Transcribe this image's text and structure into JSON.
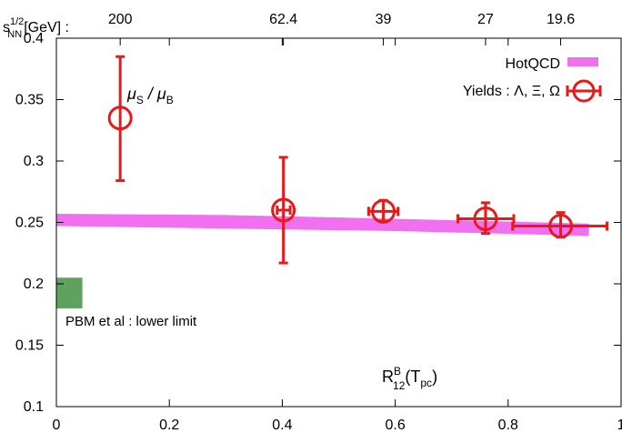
{
  "chart_data": {
    "type": "scatter",
    "xlim": [
      0,
      1
    ],
    "ylim": [
      0.1,
      0.4
    ],
    "x_ticks": [
      {
        "value": 0,
        "label": "0"
      },
      {
        "value": 0.2,
        "label": "0.2"
      },
      {
        "value": 0.4,
        "label": "0.4"
      },
      {
        "value": 0.6,
        "label": "0.6"
      },
      {
        "value": 0.8,
        "label": "0.8"
      },
      {
        "value": 1,
        "label": "1"
      }
    ],
    "y_ticks": [
      {
        "value": 0.1,
        "label": "0.1"
      },
      {
        "value": 0.15,
        "label": "0.15"
      },
      {
        "value": 0.2,
        "label": "0.2"
      },
      {
        "value": 0.25,
        "label": "0.25"
      },
      {
        "value": 0.3,
        "label": "0.3"
      },
      {
        "value": 0.35,
        "label": "0.35"
      },
      {
        "value": 0.4,
        "label": "0.4"
      }
    ],
    "top_axis": {
      "label_base": "s",
      "label_sup": "1/2",
      "label_sub": "NN",
      "label_rest": "[GeV] :",
      "ticks": [
        {
          "value": 0.113,
          "label": "200"
        },
        {
          "value": 0.402,
          "label": "62.4"
        },
        {
          "value": 0.579,
          "label": "39"
        },
        {
          "value": 0.76,
          "label": "27"
        },
        {
          "value": 0.893,
          "label": "19.6"
        }
      ]
    },
    "xlabel": {
      "main": "R",
      "sup": "B",
      "sub": "12",
      "rest": "(T",
      "rest_sub": "pc",
      "close": ")"
    },
    "series": [
      {
        "name": "Yields : Λ, Ξ, Ω",
        "color": "#e8191b",
        "points": [
          {
            "x": 0.113,
            "y": 0.335,
            "yerr_low": 0.284,
            "yerr_high": 0.385,
            "xerr_low": 0.113,
            "xerr_high": 0.113
          },
          {
            "x": 0.402,
            "y": 0.26,
            "yerr_low": 0.217,
            "yerr_high": 0.303,
            "xerr_low": 0.391,
            "xerr_high": 0.414
          },
          {
            "x": 0.579,
            "y": 0.259,
            "yerr_low": 0.251,
            "yerr_high": 0.268,
            "xerr_low": 0.553,
            "xerr_high": 0.605
          },
          {
            "x": 0.76,
            "y": 0.253,
            "yerr_low": 0.241,
            "yerr_high": 0.266,
            "xerr_low": 0.711,
            "xerr_high": 0.81
          },
          {
            "x": 0.893,
            "y": 0.247,
            "yerr_low": 0.238,
            "yerr_high": 0.258,
            "xerr_low": 0.808,
            "xerr_high": 0.975
          }
        ]
      },
      {
        "name": "HotQCD",
        "color": "#f070f0",
        "band": [
          {
            "x": 0.0,
            "y_low": 0.247,
            "y_high": 0.257
          },
          {
            "x": 0.3,
            "y_low": 0.245,
            "y_high": 0.256
          },
          {
            "x": 0.6,
            "y_low": 0.243,
            "y_high": 0.253
          },
          {
            "x": 0.943,
            "y_low": 0.239,
            "y_high": 0.249
          }
        ]
      }
    ],
    "pbm_box": {
      "x0": 0.0,
      "x1": 0.046,
      "y0": 0.18,
      "y1": 0.205,
      "color": "#5fa25f"
    },
    "annotations": {
      "ratio_mu_s": "μ",
      "ratio_s_sub": "S",
      "ratio_slash": " / μ",
      "ratio_b_sub": "B",
      "pbm": "PBM et al : lower limit"
    },
    "legend_position": "top-right",
    "grid": false
  }
}
